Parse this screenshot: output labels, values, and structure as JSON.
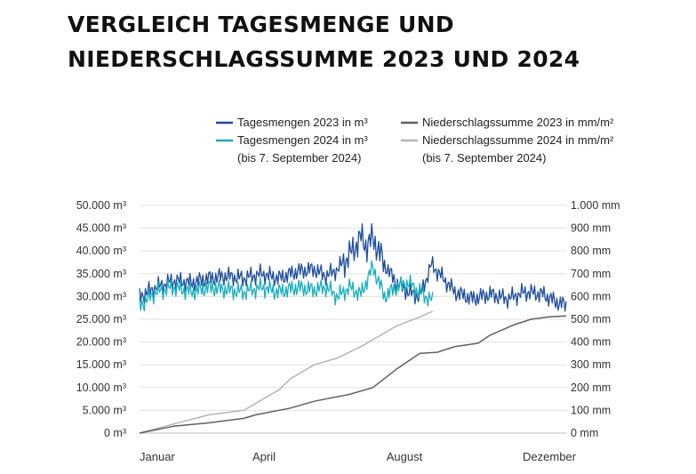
{
  "title_lines": [
    "VERGLEICH TAGESMENGE UND",
    "NIEDERSCHLAGSSUMME 2023 UND 2024"
  ],
  "chart_data": {
    "type": "line",
    "title": "VERGLEICH TAGESMENGE UND NIEDERSCHLAGSSUMME 2023 UND 2024",
    "x_ticks": [
      "Januar",
      "April",
      "August",
      "Dezember"
    ],
    "y_left": {
      "unit": "m³",
      "range": [
        0,
        50000
      ],
      "ticks": [
        "0 m³",
        "5.000 m³",
        "10.000 m³",
        "15.000 m³",
        "20.000 m³",
        "25.000 m³",
        "30.000 m³",
        "35.000 m³",
        "40.000 m³",
        "45.000 m³",
        "50.000 m³"
      ]
    },
    "y_right": {
      "unit": "mm",
      "range": [
        0,
        1000
      ],
      "ticks": [
        "0 mm",
        "100 mm",
        "200 mm",
        "300 mm",
        "400 mm",
        "500 mm",
        "600 mm",
        "700 mm",
        "800 mm",
        "900 mm",
        "1.000 mm"
      ]
    },
    "grid": true,
    "legend_position": "top",
    "series": [
      {
        "name": "Tagesmengen 2023 in m³",
        "axis": "left",
        "color": "#1f4e9c",
        "day_of_year": [
          1,
          15,
          30,
          45,
          60,
          75,
          90,
          105,
          120,
          135,
          150,
          160,
          170,
          180,
          190,
          195,
          200,
          205,
          210,
          220,
          230,
          240,
          250,
          260,
          270,
          285,
          300,
          315,
          330,
          345,
          355,
          365
        ],
        "values": [
          30000,
          32000,
          33500,
          33000,
          34000,
          34500,
          34000,
          35000,
          34000,
          35500,
          36000,
          34500,
          36000,
          39000,
          43000,
          41000,
          43000,
          40000,
          37000,
          33000,
          31000,
          30000,
          37000,
          34000,
          31000,
          29500,
          30500,
          29500,
          31000,
          30500,
          29000,
          28000
        ]
      },
      {
        "name": "Tagesmengen 2024 in m³",
        "axis": "left",
        "color": "#19aebd",
        "note": "(bis 7. September 2024)",
        "day_of_year": [
          1,
          15,
          30,
          45,
          60,
          75,
          90,
          105,
          120,
          135,
          150,
          160,
          170,
          180,
          190,
          200,
          210,
          220,
          230,
          240,
          251
        ],
        "values": [
          28000,
          31000,
          32000,
          31000,
          32000,
          31500,
          31000,
          32000,
          31000,
          32000,
          31500,
          32000,
          30000,
          32000,
          30500,
          36500,
          30000,
          32000,
          33000,
          31000,
          29000
        ]
      },
      {
        "name": "Niederschlagssumme 2023 in mm/m²",
        "axis": "right",
        "color": "#606060",
        "day_of_year": [
          1,
          30,
          60,
          90,
          100,
          130,
          150,
          180,
          200,
          220,
          240,
          255,
          270,
          290,
          300,
          320,
          335,
          350,
          365
        ],
        "values": [
          0,
          30,
          45,
          65,
          80,
          110,
          140,
          170,
          200,
          280,
          350,
          355,
          380,
          395,
          430,
          475,
          500,
          510,
          515
        ]
      },
      {
        "name": "Niederschlagssumme 2024 in mm/m²",
        "axis": "right",
        "color": "#b5b5b5",
        "note": "(bis 7. September 2024)",
        "day_of_year": [
          1,
          30,
          60,
          90,
          100,
          120,
          130,
          150,
          170,
          190,
          200,
          210,
          220,
          230,
          240,
          251
        ],
        "values": [
          0,
          40,
          80,
          100,
          130,
          190,
          240,
          300,
          330,
          380,
          410,
          440,
          470,
          490,
          510,
          535
        ]
      }
    ]
  }
}
